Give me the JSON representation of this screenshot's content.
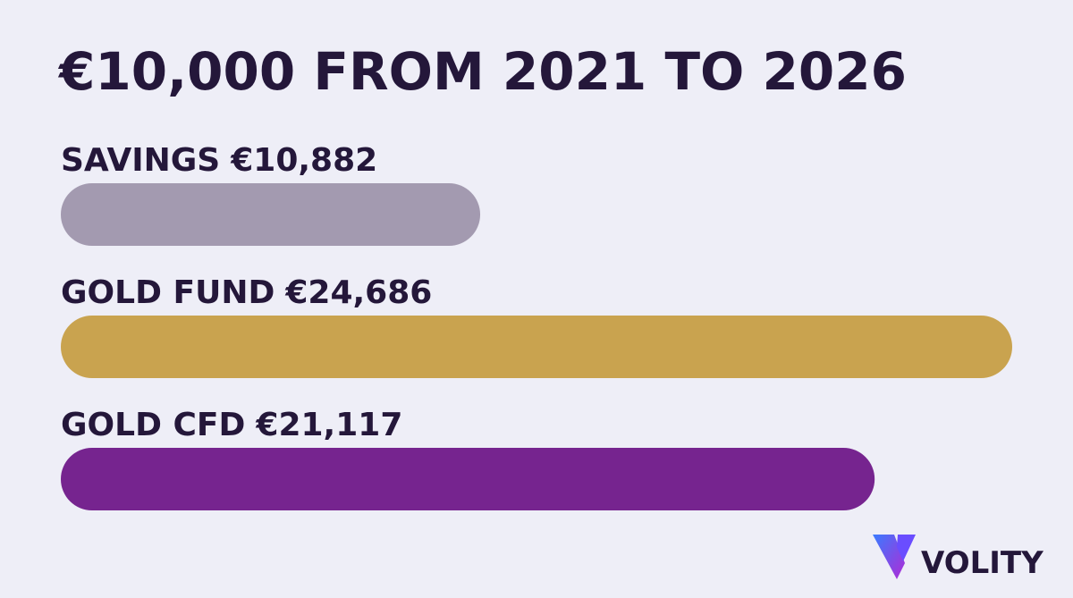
{
  "chart_data": {
    "type": "bar",
    "orientation": "horizontal",
    "title": "€10,000 FROM 2021 TO 2026",
    "categories": [
      "SAVINGS",
      "GOLD FUND",
      "GOLD CFD"
    ],
    "values": [
      10882,
      24686,
      21117
    ],
    "value_labels": [
      "€10,882",
      "€24,686",
      "€21,117"
    ],
    "colors": [
      "#a39ab0",
      "#c9a34f",
      "#76248f"
    ]
  },
  "logo": "VOLITY"
}
